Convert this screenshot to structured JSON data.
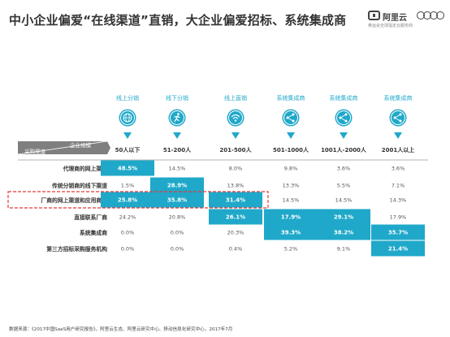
{
  "title": "中小企业偏爱“在线渠道”直销，大企业偏爱招标、系统集成商",
  "logo": {
    "brand": "阿里云",
    "tagline": "奥运会全球指定云服务商"
  },
  "footer": "数据来源：《2017中国SaaS用户研究报告》，阿里云生态、阿里云研究中心、移动信息化研究中心，2017年7月",
  "colors": {
    "accent": "#1fa8c9",
    "highlight_box": "#e23b3b",
    "header_bar": "#7f7f7f",
    "text": "#333333"
  },
  "icons": [
    "globe-icon",
    "runner-icon",
    "wifi-icon",
    "network-icon",
    "network-icon",
    "network-icon"
  ],
  "chart_data": {
    "type": "table",
    "corner_labels": {
      "column_axis": "企业规模",
      "row_axis": "采购渠道"
    },
    "column_labels": [
      "线上分销",
      "线下分销",
      "线上直销",
      "系统集成商",
      "系统集成商",
      "系统集成商"
    ],
    "categories": [
      "50人以下",
      "51-200人",
      "201-500人",
      "501-1000人",
      "1001人-2000人",
      "2001人以上"
    ],
    "rows": [
      {
        "name": "代理商的网上渠道",
        "values": [
          "48.5%",
          "14.5%",
          "8.0%",
          "9.8%",
          "3.6%",
          "3.6%"
        ],
        "highlight": [
          true,
          false,
          false,
          false,
          false,
          false
        ]
      },
      {
        "name": "传统分销商的线下渠道",
        "values": [
          "1.5%",
          "28.9%",
          "13.8%",
          "13.3%",
          "5.5%",
          "7.1%"
        ],
        "highlight": [
          false,
          true,
          false,
          false,
          false,
          false
        ]
      },
      {
        "name": "厂商的网上渠道和应用商店",
        "values": [
          "25.8%",
          "35.8%",
          "31.4%",
          "14.5%",
          "14.5%",
          "14.3%"
        ],
        "highlight": [
          true,
          true,
          true,
          false,
          false,
          false
        ]
      },
      {
        "name": "直接联系厂商",
        "values": [
          "24.2%",
          "20.8%",
          "26.1%",
          "17.9%",
          "29.1%",
          "17.9%"
        ],
        "highlight": [
          false,
          false,
          true,
          true,
          true,
          false
        ]
      },
      {
        "name": "系统集成商",
        "values": [
          "0.0%",
          "0.0%",
          "20.3%",
          "39.3%",
          "38.2%",
          "35.7%"
        ],
        "highlight": [
          false,
          false,
          false,
          true,
          true,
          true
        ]
      },
      {
        "name": "第三方招标采购服务机构",
        "values": [
          "0.0%",
          "0.0%",
          "0.4%",
          "5.2%",
          "9.1%",
          "21.4%"
        ],
        "highlight": [
          false,
          false,
          false,
          false,
          false,
          true
        ]
      }
    ],
    "highlighted_row": "厂商的网上渠道和应用商店"
  }
}
